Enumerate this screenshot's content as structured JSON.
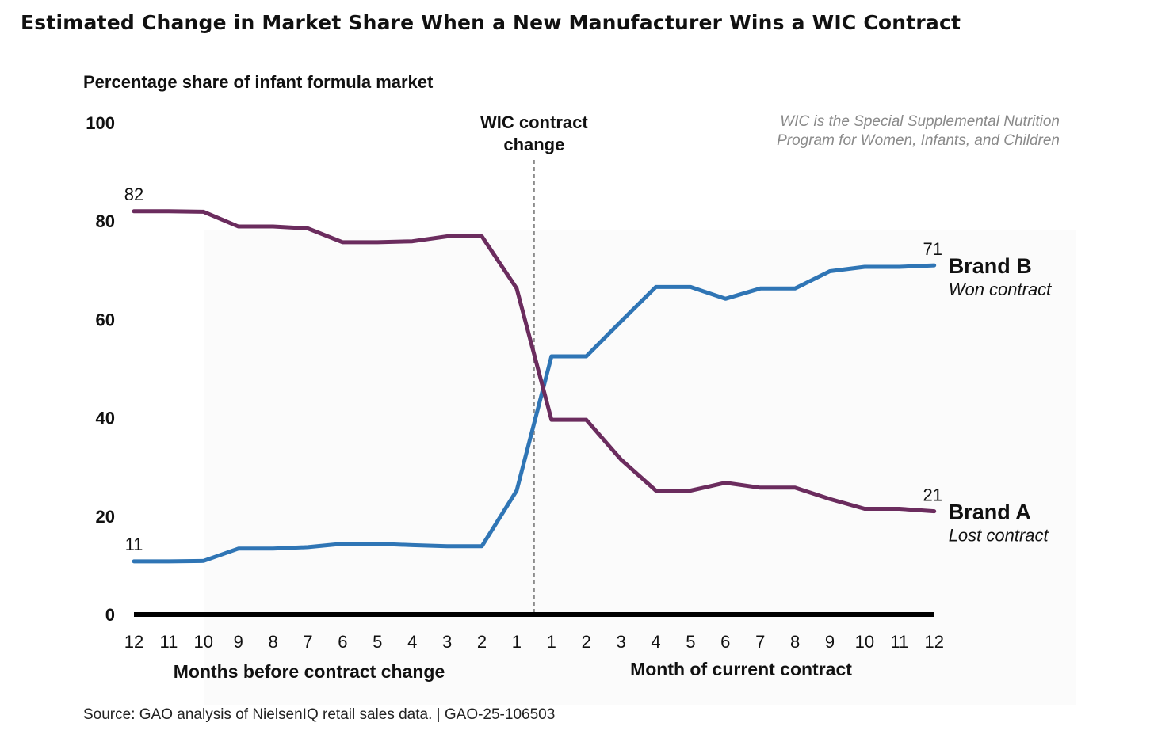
{
  "page_title": "Estimated Change in Market Share When a New Manufacturer Wins a WIC Contract",
  "chart_data": {
    "type": "line",
    "ylabel": "Percentage share of infant formula market",
    "ylim": [
      0,
      100
    ],
    "yticks": [
      0,
      20,
      40,
      60,
      80,
      100
    ],
    "x": [
      -12,
      -11,
      -10,
      -9,
      -8,
      -7,
      -6,
      -5,
      -4,
      -3,
      -2,
      -1,
      1,
      2,
      3,
      4,
      5,
      6,
      7,
      8,
      9,
      10,
      11,
      12
    ],
    "tick_labels": [
      "12",
      "11",
      "10",
      "9",
      "8",
      "7",
      "6",
      "5",
      "4",
      "3",
      "2",
      "1",
      "1",
      "2",
      "3",
      "4",
      "5",
      "6",
      "7",
      "8",
      "9",
      "10",
      "11",
      "12"
    ],
    "xlabel_before": "Months before contract change",
    "xlabel_after": "Month of current contract",
    "event_line_label": [
      "WIC contract",
      "change"
    ],
    "note": [
      "WIC is the Special Supplemental Nutrition",
      "Program for Women, Infants, and Children"
    ],
    "series": [
      {
        "name": "Brand B",
        "sublabel": "Won contract",
        "color": "#2F75B5",
        "start_label": "11",
        "end_label": "71",
        "values": [
          10.8,
          10.8,
          10.9,
          13.4,
          13.4,
          13.7,
          14.4,
          14.4,
          14.1,
          13.9,
          13.9,
          25.2,
          52.5,
          52.5,
          59.6,
          66.6,
          66.6,
          64.2,
          66.3,
          66.3,
          69.8,
          70.7,
          70.7,
          71.0
        ]
      },
      {
        "name": "Brand A",
        "sublabel": "Lost contract",
        "color": "#6B2C5E",
        "start_label": "82",
        "end_label": "21",
        "values": [
          82.0,
          82.0,
          81.9,
          78.9,
          78.9,
          78.5,
          75.7,
          75.7,
          75.9,
          76.9,
          76.9,
          66.3,
          39.6,
          39.6,
          31.5,
          25.2,
          25.2,
          26.8,
          25.8,
          25.8,
          23.5,
          21.5,
          21.5,
          21.0
        ]
      }
    ]
  },
  "source": "Source: GAO analysis of NielsenIQ retail sales data.  |  GAO-25-106503"
}
